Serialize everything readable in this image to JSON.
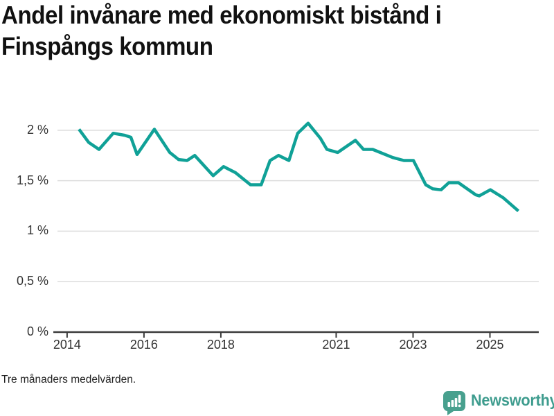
{
  "header": {
    "title_line1": "Andel invånare med ekonomiskt bistånd i",
    "title_line2": "Finspångs kommun"
  },
  "footer": {
    "note": "Tre månaders medelvärden."
  },
  "branding": {
    "wordmark": "Newsworthy",
    "icon": "bar-chart-speech-bubble-icon",
    "icon_color": "#48a08e",
    "wordmark_color": "#3e9c8e"
  },
  "chart_data": {
    "type": "line",
    "title": "Andel invånare med ekonomiskt bistånd i Finspångs kommun",
    "note": "Tre månaders medelvärden.",
    "xlabel": "",
    "ylabel": "",
    "unit": "percent",
    "grid": true,
    "legend": "none",
    "line_color": "#10a197",
    "axis_color": "#3a3a3a",
    "grid_color": "#dcdcdc",
    "x_range": [
      2013.75,
      2026.27
    ],
    "y_range": [
      0,
      2.26
    ],
    "x_ticks": {
      "values": [
        2014,
        2016,
        2018,
        2021,
        2023,
        2025
      ],
      "labels": [
        "2014",
        "2016",
        "2018",
        "2021",
        "2023",
        "2025"
      ]
    },
    "y_ticks": {
      "values": [
        0,
        0.5,
        1,
        1.5,
        2
      ],
      "labels": [
        "0 %",
        "0,5 %",
        "1 %",
        "1,5 %",
        "2 %"
      ]
    },
    "series": [
      {
        "name": "Andel invånare med ekonomiskt bistånd (%)",
        "x": [
          2014.31,
          2014.56,
          2014.83,
          2015.2,
          2015.5,
          2015.66,
          2015.82,
          2016.27,
          2016.67,
          2016.9,
          2017.12,
          2017.32,
          2017.8,
          2018.07,
          2018.38,
          2018.77,
          2019.05,
          2019.28,
          2019.5,
          2019.77,
          2020.0,
          2020.27,
          2020.59,
          2020.76,
          2021.04,
          2021.5,
          2021.71,
          2021.95,
          2022.47,
          2022.76,
          2023.01,
          2023.33,
          2023.51,
          2023.73,
          2023.93,
          2024.18,
          2024.63,
          2024.72,
          2025.01,
          2025.35,
          2025.74
        ],
        "y": [
          2.01,
          1.88,
          1.81,
          1.97,
          1.95,
          1.93,
          1.76,
          2.01,
          1.78,
          1.71,
          1.7,
          1.75,
          1.55,
          1.64,
          1.58,
          1.46,
          1.46,
          1.7,
          1.75,
          1.7,
          1.97,
          2.07,
          1.92,
          1.81,
          1.78,
          1.9,
          1.81,
          1.81,
          1.73,
          1.7,
          1.7,
          1.46,
          1.42,
          1.41,
          1.48,
          1.48,
          1.36,
          1.35,
          1.41,
          1.33,
          1.2
        ]
      }
    ]
  }
}
